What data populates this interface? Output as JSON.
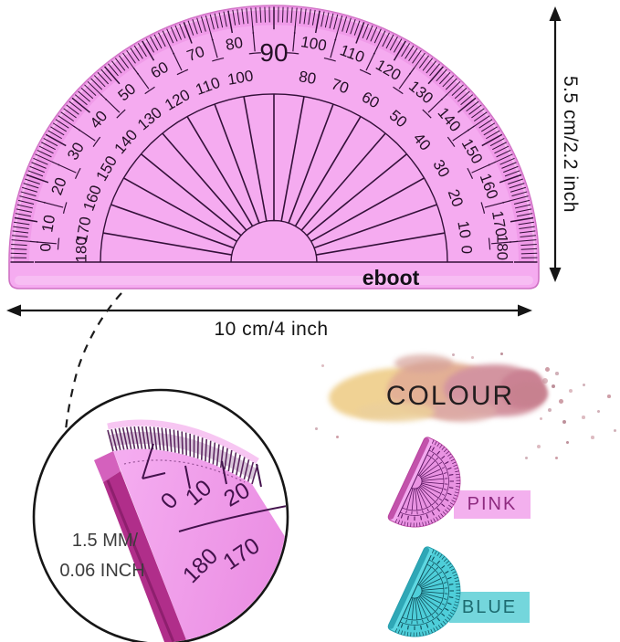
{
  "title": "Protractor product dimension diagram",
  "dimensions": {
    "height_label": "5.5 cm/2.2 inch",
    "width_label": "10 cm/4 inch"
  },
  "protractor": {
    "brand": "eboot",
    "top_label": "90",
    "outer_scale": [
      "0",
      "10",
      "20",
      "30",
      "40",
      "50",
      "60",
      "70",
      "80",
      "90",
      "100",
      "110",
      "120",
      "130",
      "140",
      "150",
      "160",
      "170",
      "180"
    ],
    "inner_scale": [
      "180",
      "170",
      "160",
      "150",
      "140",
      "130",
      "120",
      "110",
      "100",
      "90",
      "80",
      "70",
      "60",
      "50",
      "40",
      "30",
      "20",
      "10",
      "0"
    ]
  },
  "magnifier": {
    "thickness_label_line1": "1.5 MM/",
    "thickness_label_line2": "0.06 INCH",
    "outer_labels": [
      "0",
      "10",
      "20"
    ],
    "inner_labels": [
      "180",
      "170"
    ]
  },
  "colour_section": {
    "heading": "COLOUR",
    "options": [
      {
        "name": "PINK",
        "band": "#f3b0ee",
        "text": "#8e2b80",
        "mini": {
          "face": "#f3a9ef",
          "rim": "#e07dd6",
          "ink": "#5a1560",
          "edge": "#b9439f"
        }
      },
      {
        "name": "BLUE",
        "band": "#74d6dc",
        "text": "#1d6b70",
        "mini": {
          "face": "#5fd8e2",
          "rim": "#3ec3cf",
          "ink": "#0e4c58",
          "edge": "#279fae"
        }
      }
    ]
  },
  "colors": {
    "protractor_face": "#f5abf0",
    "protractor_rim_tint": "rgba(231,128,222,0.38)",
    "protractor_outline": "#cf72c4",
    "protractor_ink": "#331039",
    "number_ink": "#241026",
    "dimension_ink": "#161616",
    "magnifier_face": "#f3a5ef",
    "magnifier_edge_dark": "#b02e8a",
    "magnifier_edge_bevel": "#d461bd",
    "magnifier_ink": "#43124c"
  }
}
